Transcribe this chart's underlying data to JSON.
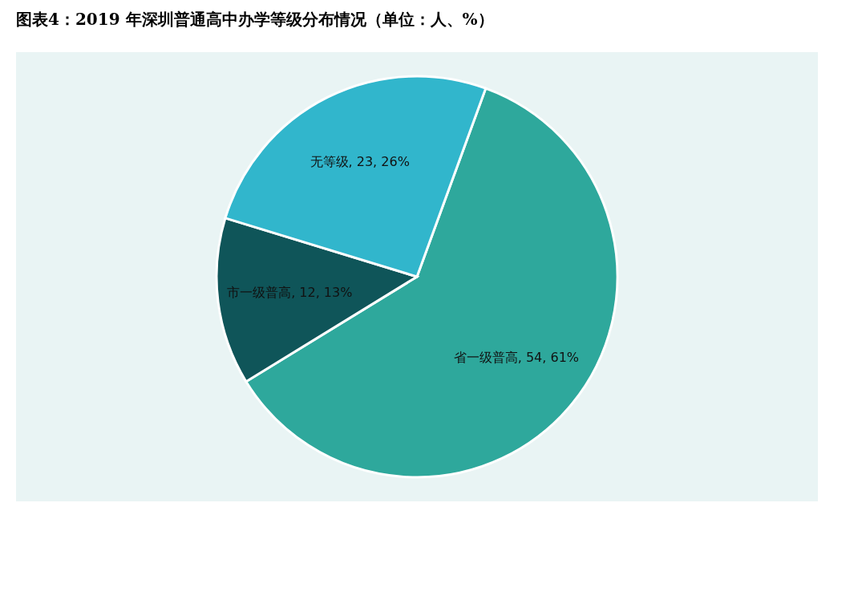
{
  "chart_data": {
    "type": "pie",
    "title": "图表4：2019 年深圳普通高中办学等级分布情况（单位：人、%）",
    "categories": [
      "省一级普高",
      "市一级普高",
      "无等级"
    ],
    "values": [
      54,
      12,
      23
    ],
    "colors": [
      "#2ea89c",
      "#0f5559",
      "#31b6cc"
    ],
    "value_labels": [
      "54, 61%",
      "12, 13%",
      "23, 26%"
    ]
  }
}
